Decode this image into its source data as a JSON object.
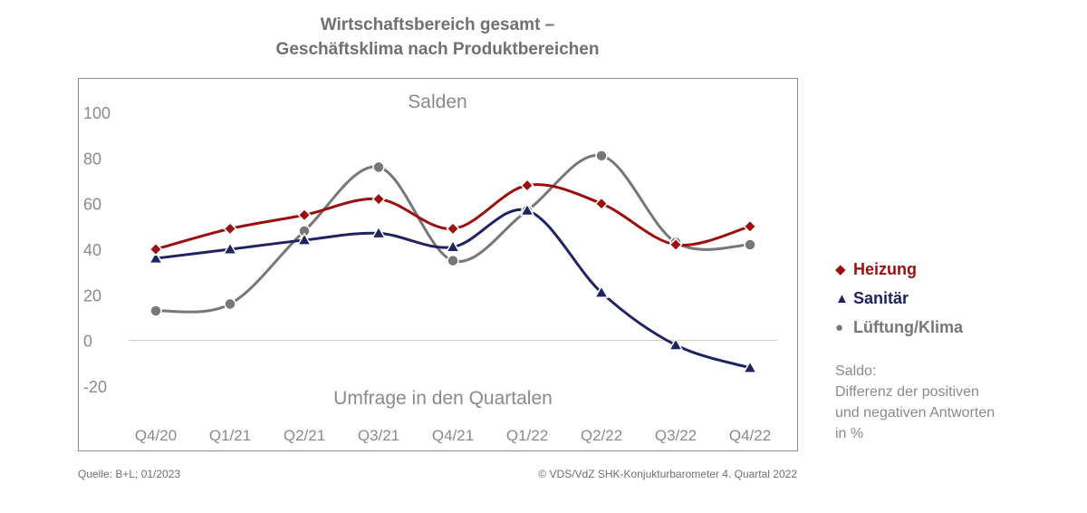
{
  "title_lines": [
    "Wirtschaftsbereich gesamt –",
    "Geschäftsklima nach Produktbereichen"
  ],
  "note_lines": [
    "Saldo:",
    "Differenz der positiven",
    "und negativen Antworten",
    "in %"
  ],
  "footer": {
    "source": "Quelle: B+L; 01/2023",
    "copyright": "© VDS/VdZ SHK-Konjukturbarometer 4. Quartal 2022"
  },
  "chart_data": {
    "type": "line",
    "title": "Wirtschaftsbereich gesamt – Geschäftsklima nach Produktbereichen",
    "ylabel": "Salden",
    "xlabel": "Umfrage in den Quartalen",
    "categories": [
      "Q4/20",
      "Q1/21",
      "Q2/21",
      "Q3/21",
      "Q4/21",
      "Q1/22",
      "Q2/22",
      "Q3/22",
      "Q4/22"
    ],
    "yticks": [
      -20,
      0,
      20,
      40,
      60,
      80,
      100
    ],
    "ylim": [
      -20,
      100
    ],
    "grid": false,
    "legend_position": "right",
    "series": [
      {
        "name": "Heizung",
        "color": "#9c0f0f",
        "marker": "diamond",
        "values": [
          40,
          49,
          55,
          62,
          49,
          68,
          60,
          42,
          50
        ]
      },
      {
        "name": "Sanitär",
        "color": "#1f2461",
        "marker": "triangle",
        "values": [
          36,
          40,
          44,
          47,
          41,
          57,
          21,
          -2,
          -12
        ]
      },
      {
        "name": "Lüftung/Klima",
        "color": "#777777",
        "marker": "circle",
        "values": [
          13,
          16,
          48,
          76,
          35,
          57,
          81,
          43,
          42
        ]
      }
    ]
  }
}
